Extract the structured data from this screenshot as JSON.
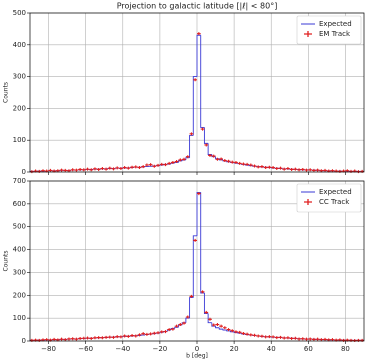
{
  "chart_data": [
    {
      "type": "histogram",
      "title": "Projection to galactic latitude [|ℓ| < 80°]",
      "ylabel": "Counts",
      "bins": [
        -90,
        -88,
        -86,
        -84,
        -82,
        -80,
        -78,
        -76,
        -74,
        -72,
        -70,
        -68,
        -66,
        -64,
        -62,
        -60,
        -58,
        -56,
        -54,
        -52,
        -50,
        -48,
        -46,
        -44,
        -42,
        -40,
        -38,
        -36,
        -34,
        -32,
        -30,
        -28,
        -26,
        -24,
        -22,
        -20,
        -18,
        -16,
        -14,
        -12,
        -10,
        -8,
        -6,
        -4,
        -2,
        0,
        2,
        4,
        6,
        8,
        10,
        12,
        14,
        16,
        18,
        20,
        22,
        24,
        26,
        28,
        30,
        32,
        34,
        36,
        38,
        40,
        42,
        44,
        46,
        48,
        50,
        52,
        54,
        56,
        58,
        60,
        62,
        64,
        66,
        68,
        70,
        72,
        74,
        76,
        78,
        80,
        82,
        84,
        86,
        88,
        90
      ],
      "xlim": [
        -90,
        90
      ],
      "xticks": [
        -80,
        -60,
        -40,
        -20,
        0,
        20,
        40,
        60,
        80
      ],
      "ylim": [
        0,
        500
      ],
      "yticks": [
        0,
        100,
        200,
        300,
        400,
        500
      ],
      "grid": true,
      "legend": "upper right",
      "series": [
        {
          "name": "Expected",
          "style": "step",
          "color": "#3a3ad6",
          "values": [
            2,
            2,
            3,
            3,
            3,
            4,
            4,
            4,
            5,
            5,
            5,
            6,
            6,
            7,
            7,
            8,
            8,
            9,
            9,
            10,
            10,
            11,
            11,
            12,
            12,
            13,
            13,
            14,
            15,
            15,
            16,
            17,
            18,
            19,
            20,
            22,
            24,
            25,
            28,
            30,
            35,
            38,
            45,
            115,
            300,
            430,
            140,
            90,
            55,
            48,
            42,
            38,
            35,
            32,
            30,
            28,
            26,
            24,
            22,
            20,
            18,
            17,
            16,
            15,
            14,
            13,
            12,
            11,
            10,
            10,
            9,
            8,
            8,
            7,
            7,
            6,
            6,
            5,
            5,
            4,
            4,
            4,
            3,
            3,
            3,
            3,
            2,
            2,
            2,
            2
          ]
        },
        {
          "name": "EM Track",
          "style": "cross",
          "color": "#e02020",
          "values": [
            1,
            3,
            2,
            4,
            3,
            5,
            3,
            4,
            6,
            5,
            4,
            7,
            6,
            8,
            7,
            9,
            7,
            10,
            8,
            11,
            9,
            12,
            10,
            13,
            11,
            14,
            12,
            15,
            16,
            14,
            17,
            22,
            23,
            18,
            21,
            24,
            23,
            27,
            30,
            33,
            38,
            40,
            48,
            120,
            290,
            435,
            135,
            85,
            52,
            50,
            40,
            41,
            36,
            34,
            31,
            30,
            27,
            25,
            24,
            22,
            19,
            16,
            17,
            14,
            15,
            14,
            11,
            12,
            9,
            11,
            8,
            9,
            7,
            8,
            6,
            7,
            5,
            6,
            4,
            5,
            3,
            4,
            3,
            2,
            3,
            4,
            2,
            3,
            1,
            2
          ]
        }
      ]
    },
    {
      "type": "histogram",
      "ylabel": "Counts",
      "xlabel": "b [deg]",
      "bins": [
        -90,
        -88,
        -86,
        -84,
        -82,
        -80,
        -78,
        -76,
        -74,
        -72,
        -70,
        -68,
        -66,
        -64,
        -62,
        -60,
        -58,
        -56,
        -54,
        -52,
        -50,
        -48,
        -46,
        -44,
        -42,
        -40,
        -38,
        -36,
        -34,
        -32,
        -30,
        -28,
        -26,
        -24,
        -22,
        -20,
        -18,
        -16,
        -14,
        -12,
        -10,
        -8,
        -6,
        -4,
        -2,
        0,
        2,
        4,
        6,
        8,
        10,
        12,
        14,
        16,
        18,
        20,
        22,
        24,
        26,
        28,
        30,
        32,
        34,
        36,
        38,
        40,
        42,
        44,
        46,
        48,
        50,
        52,
        54,
        56,
        58,
        60,
        62,
        64,
        66,
        68,
        70,
        72,
        74,
        76,
        78,
        80,
        82,
        84,
        86,
        88,
        90
      ],
      "xlim": [
        -90,
        90
      ],
      "xticks": [
        {
          "value": -80,
          "label": "−80"
        },
        {
          "value": -60,
          "label": "−60"
        },
        {
          "value": -40,
          "label": "−40"
        },
        {
          "value": -20,
          "label": "−20"
        },
        0,
        20,
        40,
        60,
        80
      ],
      "ylim": [
        0,
        700
      ],
      "yticks": [
        0,
        100,
        200,
        300,
        400,
        500,
        600,
        700
      ],
      "grid": true,
      "legend": "upper right",
      "series": [
        {
          "name": "Expected",
          "style": "step",
          "color": "#3a3ad6",
          "values": [
            3,
            3,
            4,
            4,
            5,
            5,
            6,
            6,
            7,
            7,
            8,
            9,
            9,
            10,
            11,
            12,
            12,
            13,
            14,
            15,
            15,
            16,
            17,
            18,
            19,
            20,
            21,
            22,
            23,
            24,
            26,
            28,
            30,
            32,
            34,
            38,
            42,
            48,
            55,
            60,
            70,
            80,
            100,
            190,
            460,
            650,
            210,
            120,
            80,
            65,
            58,
            52,
            48,
            44,
            40,
            37,
            34,
            31,
            28,
            26,
            24,
            22,
            20,
            19,
            18,
            17,
            16,
            15,
            14,
            13,
            12,
            11,
            10,
            9,
            9,
            8,
            8,
            7,
            7,
            6,
            6,
            5,
            5,
            4,
            4,
            4,
            3,
            3,
            3,
            3
          ]
        },
        {
          "name": "CC Track",
          "style": "cross",
          "color": "#e02020",
          "values": [
            3,
            4,
            3,
            5,
            6,
            4,
            7,
            5,
            8,
            6,
            9,
            10,
            8,
            11,
            12,
            13,
            11,
            14,
            15,
            14,
            16,
            17,
            16,
            19,
            18,
            22,
            20,
            24,
            22,
            27,
            32,
            29,
            31,
            34,
            36,
            40,
            41,
            50,
            52,
            65,
            72,
            78,
            105,
            195,
            440,
            645,
            215,
            125,
            95,
            70,
            72,
            65,
            58,
            50,
            45,
            40,
            38,
            33,
            30,
            27,
            25,
            22,
            21,
            18,
            19,
            18,
            15,
            16,
            13,
            14,
            11,
            12,
            9,
            10,
            8,
            9,
            7,
            8,
            6,
            7,
            5,
            6,
            4,
            5,
            3,
            4,
            3,
            2,
            3,
            3
          ]
        }
      ]
    }
  ]
}
